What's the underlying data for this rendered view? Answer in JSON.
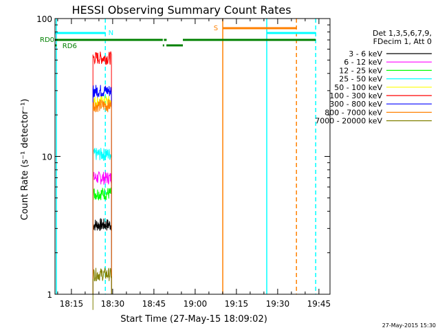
{
  "chart_data": {
    "type": "line",
    "title": "HESSI Observing Summary Count Rates",
    "xlabel": "Start Time (27-May-15 18:09:02)",
    "ylabel": "Count Rate (s⁻¹ detector⁻¹)",
    "yscale": "log",
    "ylim": [
      1,
      100
    ],
    "xlim_minutes": [
      0,
      100
    ],
    "x_ticks": [
      {
        "label": "18:15",
        "t": 5.97
      },
      {
        "label": "18:30",
        "t": 20.97
      },
      {
        "label": "18:45",
        "t": 35.97
      },
      {
        "label": "19:00",
        "t": 50.97
      },
      {
        "label": "19:15",
        "t": 65.97
      },
      {
        "label": "19:30",
        "t": 80.97
      },
      {
        "label": "19:45",
        "t": 95.97
      }
    ],
    "y_ticks": [
      {
        "label": "1",
        "v": 1
      },
      {
        "label": "10",
        "v": 10
      },
      {
        "label": "100",
        "v": 100
      }
    ],
    "legend_header": [
      "Det 1,3,5,6,7,9,",
      "FDecim 1, Att 0"
    ],
    "legend_position": "right",
    "series": [
      {
        "name": "3 - 6 keV",
        "color": "#000000",
        "level": 3.2
      },
      {
        "name": "6 - 12 keV",
        "color": "#ff00ff",
        "level": 7.0
      },
      {
        "name": "12 - 25 keV",
        "color": "#00ff00",
        "level": 5.4
      },
      {
        "name": "25 - 50 keV",
        "color": "#00ffff",
        "level": 10.4
      },
      {
        "name": "50 - 100 keV",
        "color": "#ffff00",
        "level": 25.0
      },
      {
        "name": "100 - 300 keV",
        "color": "#ff0000",
        "level": 52.0
      },
      {
        "name": "300 - 800 keV",
        "color": "#0000ff",
        "level": 30.0
      },
      {
        "name": "800 - 7000 keV",
        "color": "#ff8000",
        "level": 23.5
      },
      {
        "name": "7000 - 20000 keV",
        "color": "#808000",
        "level": 1.4
      }
    ],
    "data_interval_minutes": [
      13.8,
      20.6
    ],
    "markers": {
      "N_label": "N",
      "S_label": "S",
      "RD0_label": "RD0",
      "RD6_label": "RD6"
    }
  },
  "timestamp": "27-May-2015 15:30"
}
